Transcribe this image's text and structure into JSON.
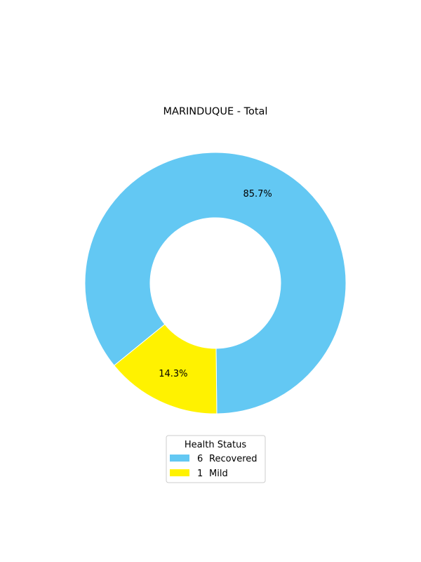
{
  "chart_data": {
    "type": "pie",
    "title": "MARINDUQUE - Total",
    "donut": true,
    "slices": [
      {
        "label": "Recovered",
        "count": "6",
        "value": 85.7,
        "display": "85.7%",
        "color": "#63c8f3"
      },
      {
        "label": "Mild",
        "count": "1",
        "value": 14.3,
        "display": "14.3%",
        "color": "#fff200"
      }
    ],
    "legend": {
      "title": "Health Status",
      "placement": "bottom-center",
      "entries": [
        {
          "count": "6",
          "label": "Recovered",
          "color": "#63c8f3"
        },
        {
          "count": "1",
          "label": "Mild",
          "color": "#fff200"
        }
      ]
    }
  }
}
